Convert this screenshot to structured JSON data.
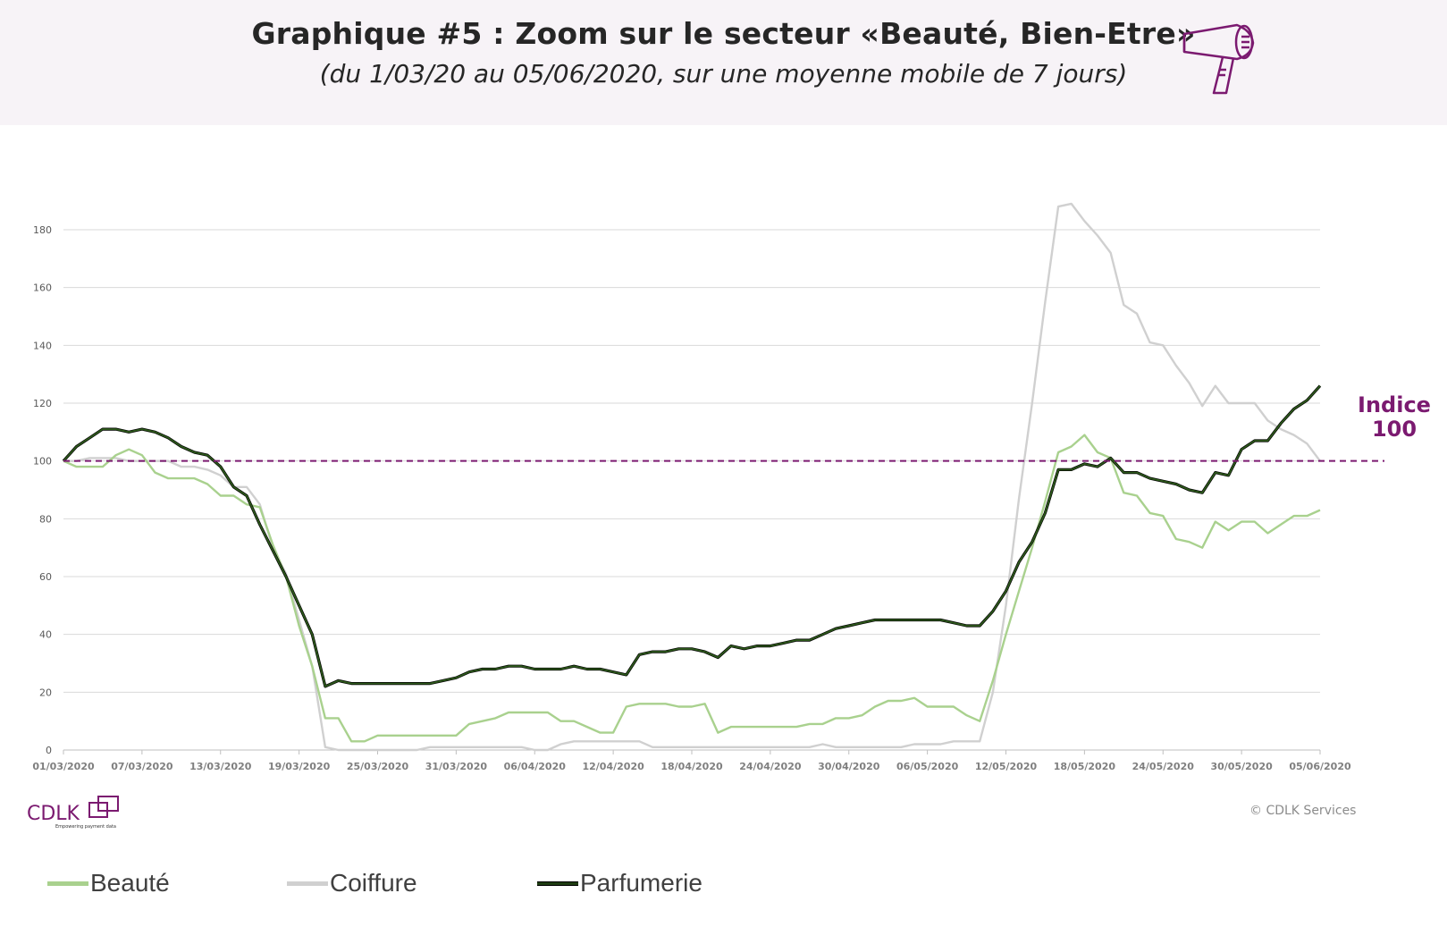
{
  "header": {
    "title": "Graphique #5 : Zoom sur le secteur «Beauté, Bien-Etre»",
    "subtitle": "(du 1/03/20 au 05/06/2020, sur une moyenne mobile de 7 jours)",
    "icon": "hair-dryer-icon"
  },
  "reference_label": {
    "line1": "Indice",
    "line2": "100"
  },
  "footer": {
    "logo_text": "CDLK",
    "logo_tagline": "Empowering payment data",
    "copyright": "© CDLK Services"
  },
  "colors": {
    "header_bg": "#f7f3f7",
    "accent": "#7b1a70",
    "beaute": "#a9d18e",
    "coiffure": "#d0d0d0",
    "parfumerie": "#2e5a1c",
    "grid": "#d9d9d9"
  },
  "chart_data": {
    "type": "line",
    "title": "Graphique #5 : Zoom sur le secteur «Beauté, Bien-Etre»",
    "xlabel": "",
    "ylabel": "",
    "ylim": [
      0,
      180
    ],
    "yticks": [
      "0",
      "20",
      "40",
      "60",
      "80",
      "100",
      "120",
      "140",
      "160",
      "180"
    ],
    "xticks": [
      "01/03/2020",
      "07/03/2020",
      "13/03/2020",
      "19/03/2020",
      "25/03/2020",
      "31/03/2020",
      "06/04/2020",
      "12/04/2020",
      "18/04/2020",
      "24/04/2020",
      "30/04/2020",
      "06/05/2020",
      "12/05/2020",
      "18/05/2020",
      "24/05/2020",
      "30/05/2020",
      "05/06/2020"
    ],
    "grid": "horizontal",
    "legend": "bottom",
    "reference_line": {
      "y": 100,
      "style": "dashed",
      "label": "Indice 100"
    },
    "x": [
      "01/03/2020",
      "02/03/2020",
      "03/03/2020",
      "04/03/2020",
      "05/03/2020",
      "06/03/2020",
      "07/03/2020",
      "08/03/2020",
      "09/03/2020",
      "10/03/2020",
      "11/03/2020",
      "12/03/2020",
      "13/03/2020",
      "14/03/2020",
      "15/03/2020",
      "16/03/2020",
      "17/03/2020",
      "18/03/2020",
      "19/03/2020",
      "20/03/2020",
      "21/03/2020",
      "22/03/2020",
      "23/03/2020",
      "24/03/2020",
      "25/03/2020",
      "26/03/2020",
      "27/03/2020",
      "28/03/2020",
      "29/03/2020",
      "30/03/2020",
      "31/03/2020",
      "01/04/2020",
      "02/04/2020",
      "03/04/2020",
      "04/04/2020",
      "05/04/2020",
      "06/04/2020",
      "07/04/2020",
      "08/04/2020",
      "09/04/2020",
      "10/04/2020",
      "11/04/2020",
      "12/04/2020",
      "13/04/2020",
      "14/04/2020",
      "15/04/2020",
      "16/04/2020",
      "17/04/2020",
      "18/04/2020",
      "19/04/2020",
      "20/04/2020",
      "21/04/2020",
      "22/04/2020",
      "23/04/2020",
      "24/04/2020",
      "25/04/2020",
      "26/04/2020",
      "27/04/2020",
      "28/04/2020",
      "29/04/2020",
      "30/04/2020",
      "01/05/2020",
      "02/05/2020",
      "03/05/2020",
      "04/05/2020",
      "05/05/2020",
      "06/05/2020",
      "07/05/2020",
      "08/05/2020",
      "09/05/2020",
      "10/05/2020",
      "11/05/2020",
      "12/05/2020",
      "13/05/2020",
      "14/05/2020",
      "15/05/2020",
      "16/05/2020",
      "17/05/2020",
      "18/05/2020",
      "19/05/2020",
      "20/05/2020",
      "21/05/2020",
      "22/05/2020",
      "23/05/2020",
      "24/05/2020",
      "25/05/2020",
      "26/05/2020",
      "27/05/2020",
      "28/05/2020",
      "29/05/2020",
      "30/05/2020",
      "31/05/2020",
      "01/06/2020",
      "02/06/2020",
      "03/06/2020",
      "04/06/2020",
      "05/06/2020"
    ],
    "series": [
      {
        "name": "Beauté",
        "color": "#a9d18e",
        "values": [
          100,
          98,
          98,
          98,
          102,
          104,
          102,
          96,
          94,
          94,
          94,
          92,
          88,
          88,
          85,
          84,
          71,
          60,
          43,
          29,
          11,
          11,
          3,
          3,
          5,
          5,
          5,
          5,
          5,
          5,
          5,
          9,
          10,
          11,
          13,
          13,
          13,
          13,
          10,
          10,
          8,
          6,
          6,
          15,
          16,
          16,
          16,
          15,
          15,
          16,
          6,
          8,
          8,
          8,
          8,
          8,
          8,
          9,
          9,
          11,
          11,
          12,
          15,
          17,
          17,
          18,
          15,
          15,
          15,
          12,
          10,
          24,
          40,
          55,
          70,
          86,
          103,
          105,
          109,
          103,
          101,
          89,
          88,
          82,
          81,
          73,
          72,
          70,
          79,
          76,
          79,
          79,
          75,
          78,
          81,
          81,
          83
        ]
      },
      {
        "name": "Coiffure",
        "color": "#d0d0d0",
        "values": [
          100,
          100,
          101,
          101,
          101,
          100,
          100,
          100,
          100,
          98,
          98,
          97,
          95,
          91,
          91,
          85,
          70,
          61,
          45,
          29,
          1,
          0,
          0,
          0,
          0,
          0,
          0,
          0,
          1,
          1,
          1,
          1,
          1,
          1,
          1,
          1,
          0,
          0,
          2,
          3,
          3,
          3,
          3,
          3,
          3,
          1,
          1,
          1,
          1,
          1,
          1,
          1,
          1,
          1,
          1,
          1,
          1,
          1,
          2,
          1,
          1,
          1,
          1,
          1,
          1,
          2,
          2,
          2,
          3,
          3,
          3,
          20,
          50,
          87,
          120,
          155,
          188,
          189,
          183,
          178,
          172,
          154,
          151,
          141,
          140,
          133,
          127,
          119,
          126,
          120,
          120,
          120,
          114,
          111,
          109,
          106,
          100
        ]
      },
      {
        "name": "Parfumerie",
        "color": "#2e5a1c",
        "values": [
          100,
          105,
          108,
          111,
          111,
          110,
          111,
          110,
          108,
          105,
          103,
          102,
          98,
          91,
          88,
          78,
          69,
          60,
          50,
          40,
          22,
          24,
          23,
          23,
          23,
          23,
          23,
          23,
          23,
          24,
          25,
          27,
          28,
          28,
          29,
          29,
          28,
          28,
          28,
          29,
          28,
          28,
          27,
          26,
          33,
          34,
          34,
          35,
          35,
          34,
          32,
          36,
          35,
          36,
          36,
          37,
          38,
          38,
          40,
          42,
          43,
          44,
          45,
          45,
          45,
          45,
          45,
          45,
          44,
          43,
          43,
          48,
          55,
          65,
          72,
          82,
          97,
          97,
          99,
          98,
          101,
          96,
          96,
          94,
          93,
          92,
          90,
          89,
          96,
          95,
          104,
          107,
          107,
          113,
          118,
          121,
          126
        ]
      }
    ]
  }
}
